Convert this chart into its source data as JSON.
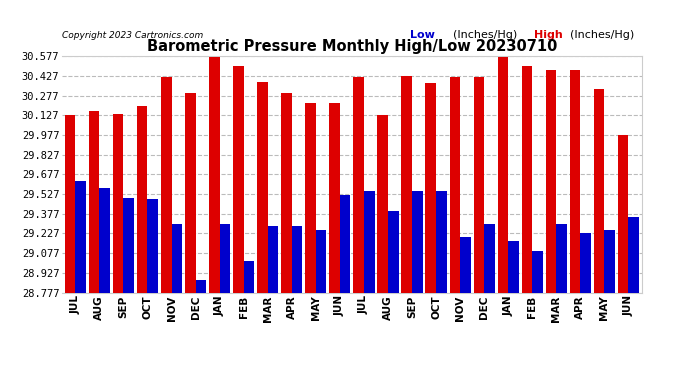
{
  "title": "Barometric Pressure Monthly High/Low 20230710",
  "copyright": "Copyright 2023 Cartronics.com",
  "legend_low": "Low",
  "legend_high": "High",
  "legend_units": "(Inches/Hg)",
  "bar_color_low": "#0000cc",
  "bar_color_high": "#dd0000",
  "background_color": "#ffffff",
  "grid_color": "#aaaaaa",
  "categories": [
    "JUL",
    "AUG",
    "SEP",
    "OCT",
    "NOV",
    "DEC",
    "JAN",
    "FEB",
    "MAR",
    "APR",
    "MAY",
    "JUN",
    "JUL",
    "AUG",
    "SEP",
    "OCT",
    "NOV",
    "DEC",
    "JAN",
    "FEB",
    "MAR",
    "APR",
    "MAY",
    "JUN"
  ],
  "high_values": [
    30.13,
    30.16,
    30.14,
    30.2,
    30.42,
    30.3,
    30.57,
    30.5,
    30.38,
    30.3,
    30.22,
    30.22,
    30.42,
    30.13,
    30.43,
    30.37,
    30.42,
    30.42,
    30.57,
    30.5,
    30.47,
    30.47,
    30.33,
    29.98
  ],
  "low_values": [
    29.63,
    29.57,
    29.5,
    29.49,
    29.3,
    28.87,
    29.3,
    29.02,
    29.28,
    29.28,
    29.25,
    29.52,
    29.55,
    29.4,
    29.55,
    29.55,
    29.2,
    29.3,
    29.17,
    29.09,
    29.3,
    29.23,
    29.25,
    29.35
  ],
  "ymin": 28.777,
  "ymax": 30.577,
  "ytick_step": 0.15
}
